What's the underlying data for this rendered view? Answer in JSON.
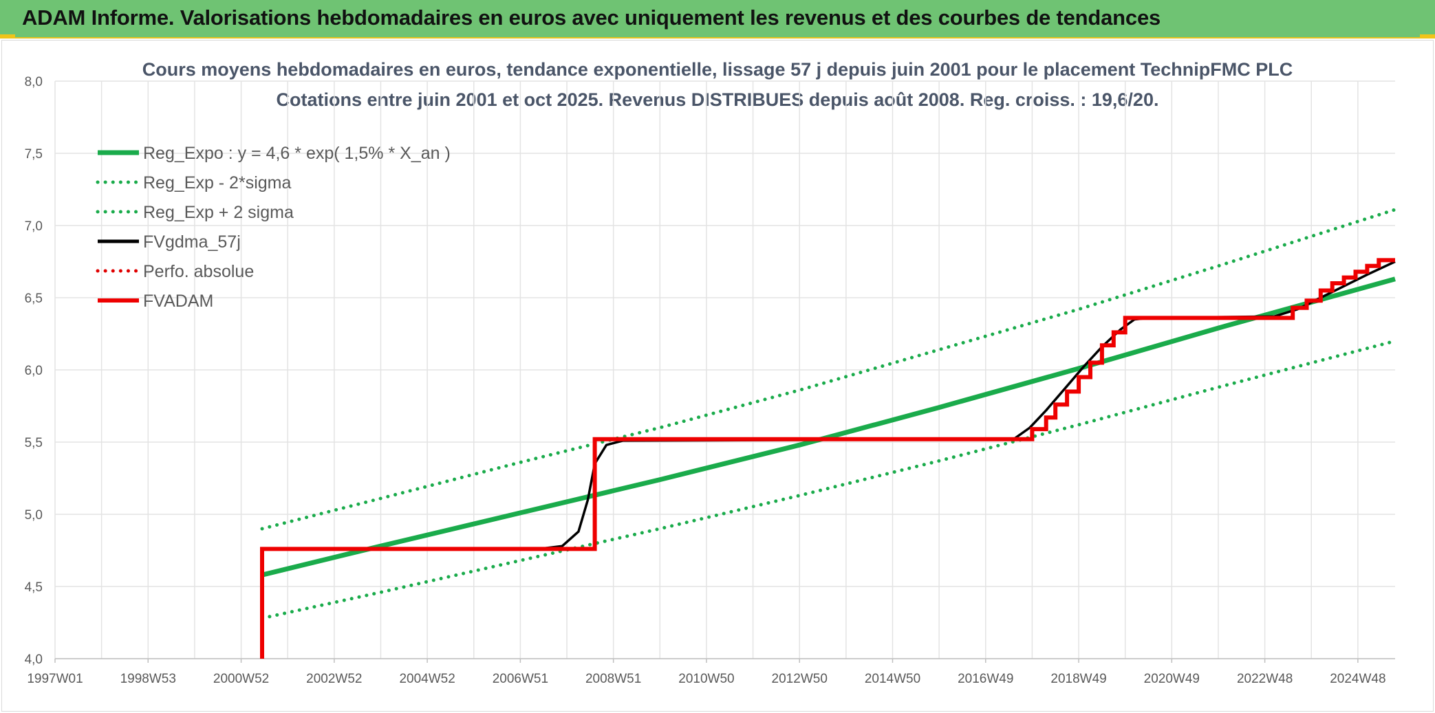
{
  "header": {
    "title": "ADAM Informe. Valorisations hebdomadaires en euros avec uniquement les revenus et des courbes de tendances"
  },
  "chart_data": {
    "type": "line",
    "title": "Cours moyens hebdomadaires en euros, tendance exponentielle, lissage 57 j depuis juin 2001 pour le placement TechnipFMC PLC",
    "subtitle": "Cotations entre juin 2001 et oct 2025. Revenus DISTRIBUES depuis août 2008. Reg. croiss. : 19,6/20.",
    "xlabel": "",
    "ylabel": "",
    "xlim": [
      1997.0,
      2025.8
    ],
    "ylim": [
      4.0,
      8.0
    ],
    "y_ticks": [
      "4,0",
      "4,5",
      "5,0",
      "5,5",
      "6,0",
      "6,5",
      "7,0",
      "7,5",
      "8,0"
    ],
    "x_ticks": [
      {
        "label": "1997W01",
        "x": 1997.0
      },
      {
        "label": "1998W53",
        "x": 1999.0
      },
      {
        "label": "2000W52",
        "x": 2001.0
      },
      {
        "label": "2002W52",
        "x": 2003.0
      },
      {
        "label": "2004W52",
        "x": 2005.0
      },
      {
        "label": "2006W51",
        "x": 2007.0
      },
      {
        "label": "2008W51",
        "x": 2009.0
      },
      {
        "label": "2010W50",
        "x": 2011.0
      },
      {
        "label": "2012W50",
        "x": 2013.0
      },
      {
        "label": "2014W50",
        "x": 2015.0
      },
      {
        "label": "2016W49",
        "x": 2017.0
      },
      {
        "label": "2018W49",
        "x": 2019.0
      },
      {
        "label": "2020W49",
        "x": 2021.0
      },
      {
        "label": "2022W48",
        "x": 2023.0
      },
      {
        "label": "2024W48",
        "x": 2025.0
      }
    ],
    "grid": true,
    "legend_position": "top-left",
    "series": [
      {
        "name": "Reg_Expo : y = 4,6 * exp( 1,5% *  X_an )",
        "color": "#1aab4b",
        "style": "solid",
        "x": [
          2001.45,
          2004.0,
          2007.0,
          2010.0,
          2013.0,
          2016.0,
          2019.0,
          2022.0,
          2025.8
        ],
        "y": [
          4.58,
          4.78,
          5.01,
          5.24,
          5.48,
          5.74,
          6.01,
          6.29,
          6.63
        ]
      },
      {
        "name": "Reg_Exp - 2*sigma",
        "color": "#1aab4b",
        "style": "dotted",
        "x": [
          2001.45,
          2004.0,
          2007.0,
          2010.0,
          2013.0,
          2016.0,
          2019.0,
          2022.0,
          2025.8
        ],
        "y": [
          4.28,
          4.46,
          4.68,
          4.9,
          5.13,
          5.37,
          5.62,
          5.88,
          6.2
        ]
      },
      {
        "name": "Reg_Exp + 2 sigma",
        "color": "#1aab4b",
        "style": "dotted",
        "x": [
          2001.45,
          2004.0,
          2007.0,
          2010.0,
          2013.0,
          2016.0,
          2019.0,
          2022.0,
          2025.8
        ],
        "y": [
          4.9,
          5.11,
          5.36,
          5.6,
          5.86,
          6.14,
          6.42,
          6.72,
          7.11
        ]
      },
      {
        "name": "FVgdma_57j",
        "color": "#000000",
        "style": "solid",
        "x": [
          2001.45,
          2001.46,
          2007.4,
          2007.9,
          2008.25,
          2008.45,
          2008.6,
          2008.85,
          2009.2,
          2017.6,
          2017.95,
          2018.3,
          2018.7,
          2019.1,
          2019.5,
          2019.9,
          2020.2,
          2020.5,
          2023.2,
          2023.7,
          2024.2,
          2024.7,
          2025.2,
          2025.8
        ],
        "y": [
          4.0,
          4.76,
          4.76,
          4.78,
          4.88,
          5.1,
          5.35,
          5.48,
          5.51,
          5.52,
          5.6,
          5.72,
          5.87,
          6.02,
          6.16,
          6.28,
          6.35,
          6.36,
          6.37,
          6.42,
          6.5,
          6.58,
          6.66,
          6.75
        ]
      },
      {
        "name": "Perfo. absolue",
        "color": "#e00000",
        "style": "dotted",
        "x": [],
        "y": []
      },
      {
        "name": "FVADAM",
        "color": "#ee0000",
        "style": "step",
        "x": [
          2001.45,
          2001.45,
          2008.6,
          2008.6,
          2018.0,
          2018.0,
          2018.3,
          2018.3,
          2018.5,
          2018.5,
          2018.75,
          2018.75,
          2019.0,
          2019.0,
          2019.25,
          2019.25,
          2019.5,
          2019.5,
          2019.75,
          2019.75,
          2020.0,
          2020.0,
          2020.3,
          2020.3,
          2023.6,
          2023.6,
          2023.9,
          2023.9,
          2024.2,
          2024.2,
          2024.45,
          2024.45,
          2024.7,
          2024.7,
          2024.95,
          2024.95,
          2025.2,
          2025.2,
          2025.45,
          2025.45,
          2025.8
        ],
        "y": [
          4.0,
          4.76,
          4.76,
          5.52,
          5.52,
          5.59,
          5.59,
          5.67,
          5.67,
          5.76,
          5.76,
          5.85,
          5.85,
          5.95,
          5.95,
          6.05,
          6.05,
          6.17,
          6.17,
          6.26,
          6.26,
          6.36,
          6.36,
          6.36,
          6.36,
          6.43,
          6.43,
          6.48,
          6.48,
          6.55,
          6.55,
          6.6,
          6.6,
          6.64,
          6.64,
          6.68,
          6.68,
          6.72,
          6.72,
          6.76,
          6.76
        ]
      }
    ]
  }
}
